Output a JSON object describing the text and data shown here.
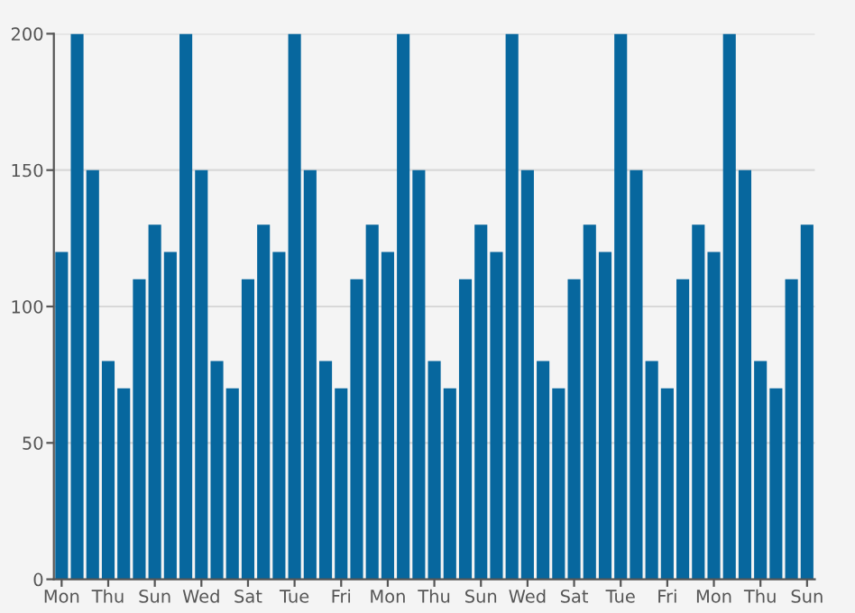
{
  "chart_data": {
    "type": "bar",
    "categories": [
      "Mon",
      null,
      null,
      "Thu",
      null,
      null,
      "Sun",
      null,
      null,
      "Wed",
      null,
      null,
      "Sat",
      null,
      null,
      "Tue",
      null,
      null,
      "Fri",
      null,
      null,
      "Mon",
      null,
      null,
      "Thu",
      null,
      null,
      "Sun",
      null,
      null,
      "Wed",
      null,
      null,
      "Sat",
      null,
      null,
      "Tue",
      null,
      null,
      "Fri",
      null,
      null,
      "Mon",
      null,
      null,
      "Thu",
      null,
      null,
      "Sun"
    ],
    "values": [
      120,
      200,
      150,
      80,
      70,
      110,
      130,
      120,
      200,
      150,
      80,
      70,
      110,
      130,
      120,
      200,
      150,
      80,
      70,
      110,
      130,
      120,
      200,
      150,
      80,
      70,
      110,
      130,
      120,
      200,
      150,
      80,
      70,
      110,
      130,
      120,
      200,
      150,
      80,
      70,
      110,
      130,
      120,
      200,
      150,
      80,
      70,
      110,
      130
    ],
    "color": "#07679e",
    "ylim": [
      0,
      200
    ],
    "yticks": [
      0,
      50,
      100,
      150,
      200
    ],
    "grid": "y"
  }
}
